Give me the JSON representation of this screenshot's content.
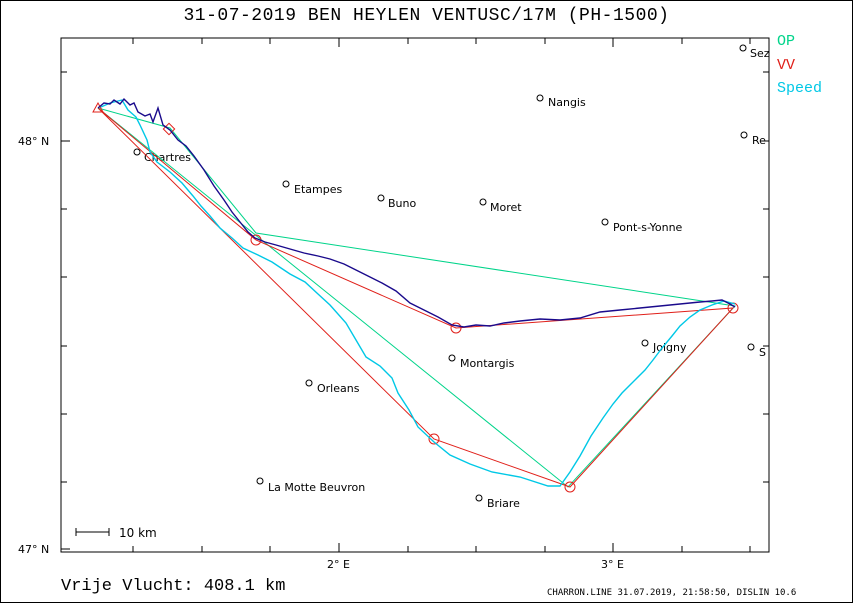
{
  "title": "31-07-2019   BEN HEYLEN   VENTUSC/17M (PH-1500)",
  "legend": [
    {
      "label": "OP",
      "color": "#00d48a"
    },
    {
      "label": "VV",
      "color": "#e0201a"
    },
    {
      "label": "Speed",
      "color": "#00c8e6"
    }
  ],
  "axis": {
    "lat_top": "48° N",
    "lat_bottom": "47° N",
    "lon_left": "2° E",
    "lon_right": "3° E"
  },
  "places": [
    {
      "name": "Chartres"
    },
    {
      "name": "Etampes"
    },
    {
      "name": "Buno"
    },
    {
      "name": "Moret"
    },
    {
      "name": "Nangis"
    },
    {
      "name": "Pont-s-Yonne"
    },
    {
      "name": "Joigny"
    },
    {
      "name": "Montargis"
    },
    {
      "name": "Orleans"
    },
    {
      "name": "La Motte Beuvron"
    },
    {
      "name": "Briare"
    },
    {
      "name": "Sez"
    },
    {
      "name": "Re"
    },
    {
      "name": "S"
    }
  ],
  "scale_label": "10 km",
  "distance_label": "Vrije Vlucht:  408.1 km",
  "footer": "CHARRON.LINE 31.07.2019, 21:58:50, DISLIN 10.6",
  "colors": {
    "track": "#1a0a8c",
    "op": "#00d48a",
    "vv": "#e0201a",
    "speed": "#00c8e6"
  }
}
